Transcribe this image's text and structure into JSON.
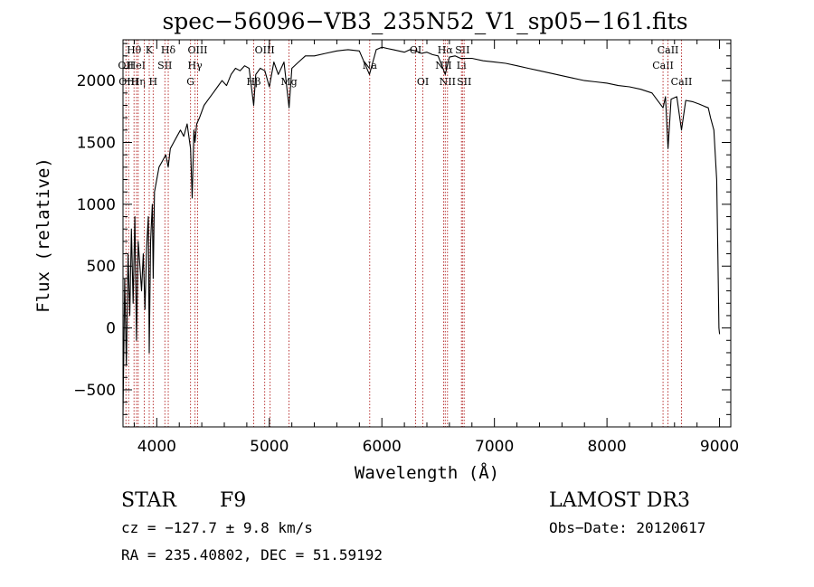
{
  "chart_data": {
    "type": "line",
    "title": "spec−56096−VB3_235N52_V1_sp05−161.fits",
    "xlabel": "Wavelength (Å)",
    "ylabel": "Flux (relative)",
    "xlim": [
      3700,
      9100
    ],
    "ylim": [
      -800,
      2330
    ],
    "xticks": [
      4000,
      5000,
      6000,
      7000,
      8000,
      9000
    ],
    "xtick_labels": [
      "4000",
      "5000",
      "6000",
      "7000",
      "8000",
      "9000"
    ],
    "yticks": [
      -500,
      0,
      500,
      1000,
      1500,
      2000
    ],
    "ytick_labels": [
      "−500",
      "0",
      "500",
      "1000",
      "1500",
      "2000"
    ],
    "x_minor_step": 200,
    "y_minor_step": 100,
    "series": [
      {
        "name": "spectrum",
        "x": [
          3700,
          3715,
          3730,
          3745,
          3760,
          3775,
          3790,
          3805,
          3820,
          3835,
          3850,
          3865,
          3880,
          3895,
          3910,
          3925,
          3933,
          3945,
          3960,
          3968,
          3980,
          4000,
          4020,
          4050,
          4080,
          4102,
          4120,
          4150,
          4180,
          4210,
          4240,
          4270,
          4300,
          4315,
          4330,
          4340,
          4355,
          4380,
          4420,
          4460,
          4500,
          4540,
          4580,
          4620,
          4660,
          4700,
          4740,
          4780,
          4820,
          4861,
          4880,
          4920,
          4960,
          5000,
          5040,
          5080,
          5130,
          5175,
          5200,
          5260,
          5320,
          5400,
          5500,
          5600,
          5700,
          5800,
          5890,
          5950,
          6000,
          6050,
          6100,
          6150,
          6200,
          6250,
          6300,
          6350,
          6400,
          6450,
          6500,
          6563,
          6600,
          6650,
          6700,
          6800,
          6900,
          7000,
          7100,
          7200,
          7300,
          7400,
          7500,
          7600,
          7700,
          7800,
          7900,
          8000,
          8100,
          8200,
          8300,
          8400,
          8498,
          8520,
          8542,
          8570,
          8620,
          8662,
          8700,
          8760,
          8820,
          8870,
          8900,
          8920,
          8950,
          8975,
          8985,
          8995,
          9000
        ],
        "y": [
          -700,
          400,
          -300,
          600,
          100,
          800,
          200,
          900,
          -100,
          700,
          500,
          300,
          600,
          150,
          650,
          900,
          -200,
          700,
          1000,
          400,
          1100,
          1200,
          1300,
          1350,
          1400,
          1300,
          1450,
          1500,
          1550,
          1600,
          1550,
          1650,
          1450,
          1050,
          1600,
          1500,
          1650,
          1700,
          1800,
          1850,
          1900,
          1950,
          2000,
          1960,
          2050,
          2100,
          2080,
          2120,
          2100,
          1800,
          2050,
          2100,
          2080,
          1950,
          2150,
          2050,
          2150,
          1780,
          2100,
          2150,
          2200,
          2200,
          2220,
          2240,
          2250,
          2240,
          2050,
          2250,
          2270,
          2260,
          2250,
          2240,
          2230,
          2250,
          2240,
          2220,
          2230,
          2210,
          2200,
          2050,
          2190,
          2200,
          2180,
          2180,
          2160,
          2150,
          2140,
          2120,
          2100,
          2080,
          2060,
          2040,
          2020,
          2000,
          1990,
          1980,
          1960,
          1950,
          1930,
          1900,
          1780,
          1870,
          1450,
          1850,
          1870,
          1600,
          1840,
          1830,
          1810,
          1790,
          1780,
          1700,
          1600,
          1200,
          600,
          0,
          -50
        ]
      }
    ],
    "line_markers": [
      {
        "wavelength": 3726,
        "label": "OII",
        "row": 1
      },
      {
        "wavelength": 3750,
        "label": "OIII",
        "row": 2
      },
      {
        "wavelength": 3798,
        "label": "Hθ",
        "row": 0
      },
      {
        "wavelength": 3820,
        "label": "HeI",
        "row": 1
      },
      {
        "wavelength": 3835,
        "label": "Hη",
        "row": 2
      },
      {
        "wavelength": 3889,
        "label": "",
        "row": 0
      },
      {
        "wavelength": 3933,
        "label": "K",
        "row": 0
      },
      {
        "wavelength": 3968,
        "label": "H",
        "row": 2
      },
      {
        "wavelength": 4072,
        "label": "SII",
        "row": 1
      },
      {
        "wavelength": 4102,
        "label": "Hδ",
        "row": 0
      },
      {
        "wavelength": 4300,
        "label": "G",
        "row": 2
      },
      {
        "wavelength": 4340,
        "label": "Hγ",
        "row": 1
      },
      {
        "wavelength": 4363,
        "label": "OIII",
        "row": 0
      },
      {
        "wavelength": 4861,
        "label": "Hβ",
        "row": 2
      },
      {
        "wavelength": 4959,
        "label": "OIII",
        "row": 0
      },
      {
        "wavelength": 5007,
        "label": "",
        "row": 0
      },
      {
        "wavelength": 5175,
        "label": "Mg",
        "row": 2
      },
      {
        "wavelength": 5892,
        "label": "Na",
        "row": 1
      },
      {
        "wavelength": 6300,
        "label": "OI",
        "row": 0
      },
      {
        "wavelength": 6364,
        "label": "OI",
        "row": 2
      },
      {
        "wavelength": 6548,
        "label": "NII",
        "row": 1
      },
      {
        "wavelength": 6563,
        "label": "Hα",
        "row": 0
      },
      {
        "wavelength": 6583,
        "label": "NII",
        "row": 2
      },
      {
        "wavelength": 6707,
        "label": "Li",
        "row": 1
      },
      {
        "wavelength": 6716,
        "label": "SII",
        "row": 0
      },
      {
        "wavelength": 6731,
        "label": "SII",
        "row": 2
      },
      {
        "wavelength": 8498,
        "label": "CaII",
        "row": 1
      },
      {
        "wavelength": 8542,
        "label": "CaII",
        "row": 0
      },
      {
        "wavelength": 8662,
        "label": "CaII",
        "row": 2
      }
    ]
  },
  "footer": {
    "class": "STAR",
    "subclass": "F9",
    "survey": "LAMOST DR3",
    "redshift": "cz = −127.7 ± 9.8 km/s",
    "obs_date": "Obs−Date: 20120617",
    "coords": "RA = 235.40802, DEC =  51.59192"
  }
}
